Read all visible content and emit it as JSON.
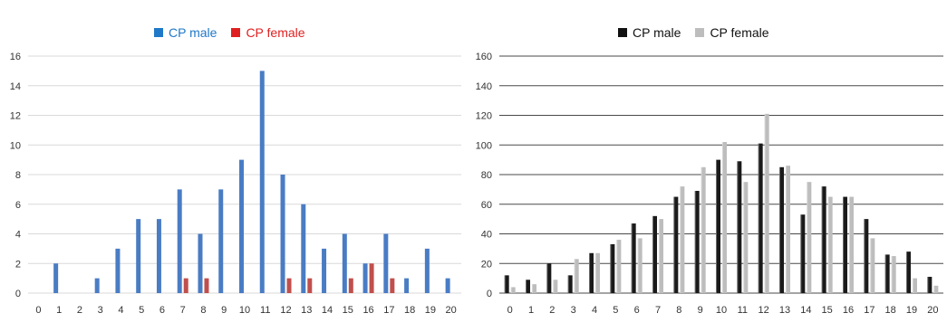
{
  "chart_data": [
    {
      "type": "bar",
      "categories": [
        "0",
        "1",
        "2",
        "3",
        "4",
        "5",
        "6",
        "7",
        "8",
        "9",
        "10",
        "11",
        "12",
        "13",
        "14",
        "15",
        "16",
        "17",
        "18",
        "19",
        "20"
      ],
      "series": [
        {
          "name": "CP male",
          "color": "#4a7cc4",
          "values": [
            0,
            2,
            0,
            1,
            3,
            5,
            5,
            7,
            4,
            7,
            9,
            15,
            8,
            6,
            3,
            4,
            2,
            4,
            1,
            3,
            1
          ]
        },
        {
          "name": "CP female",
          "color": "#c0504d",
          "values": [
            0,
            0,
            0,
            0,
            0,
            0,
            0,
            1,
            1,
            0,
            0,
            0,
            1,
            1,
            0,
            1,
            2,
            1,
            0,
            0,
            0
          ]
        }
      ],
      "yticks": [
        "0",
        "2",
        "4",
        "6",
        "8",
        "10",
        "12",
        "14",
        "16"
      ],
      "ylim": [
        0,
        16
      ],
      "grid": true,
      "legend": "top-center"
    },
    {
      "type": "bar",
      "categories": [
        "0",
        "1",
        "2",
        "3",
        "4",
        "5",
        "6",
        "7",
        "8",
        "9",
        "10",
        "11",
        "12",
        "13",
        "14",
        "15",
        "16",
        "17",
        "18",
        "19",
        "20"
      ],
      "series": [
        {
          "name": "CP male",
          "color": "#1a1a1a",
          "values": [
            12,
            9,
            20,
            12,
            27,
            33,
            47,
            52,
            65,
            69,
            90,
            89,
            101,
            85,
            53,
            72,
            65,
            50,
            26,
            28,
            11
          ]
        },
        {
          "name": "CP female",
          "color": "#bdbdbd",
          "values": [
            4,
            6,
            9,
            23,
            27,
            36,
            37,
            50,
            72,
            85,
            102,
            75,
            121,
            86,
            75,
            65,
            65,
            37,
            25,
            10,
            5
          ]
        }
      ],
      "yticks": [
        "0",
        "20",
        "40",
        "60",
        "80",
        "100",
        "120",
        "140",
        "160"
      ],
      "ylim": [
        0,
        160
      ],
      "grid": true,
      "legend": "top-center"
    }
  ]
}
